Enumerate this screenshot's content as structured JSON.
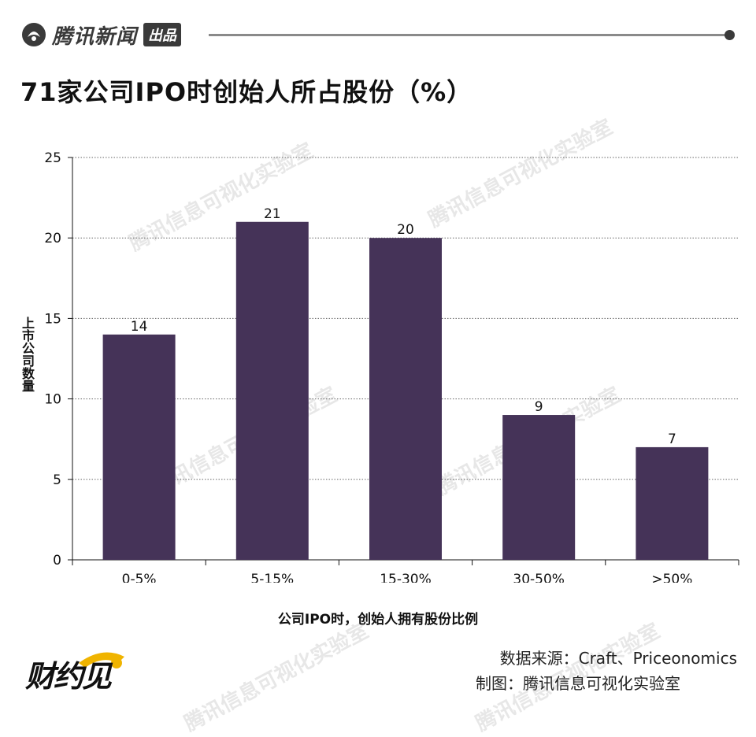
{
  "header": {
    "brand_name": "腾讯新闻",
    "brand_tag": "出品"
  },
  "title": "71家公司IPO时创始人所占股份（%）",
  "watermark": "腾讯信息可视化实验室",
  "footer": {
    "logo_text": "财约见",
    "source": "数据来源：Craft、Priceonomics",
    "maker": "制图：腾讯信息可视化实验室"
  },
  "colors": {
    "bar": "#453358",
    "grid": "#666666",
    "brand_dark": "#3a3a3a",
    "logo_accent": "#f0b400"
  },
  "chart_data": {
    "type": "bar",
    "title": "71家公司IPO时创始人所占股份（%）",
    "xlabel": "公司IPO时，创始人拥有股份比例",
    "ylabel": "上市公司数量",
    "categories": [
      "0-5%",
      "5-15%",
      "15-30%",
      "30-50%",
      ">50%"
    ],
    "values": [
      14,
      21,
      20,
      9,
      7
    ],
    "value_labels": [
      "14",
      "21",
      "20",
      "9",
      "7"
    ],
    "ylim": [
      0,
      25
    ],
    "yticks": [
      0,
      5,
      10,
      15,
      20,
      25
    ],
    "grid": "horizontal dotted",
    "legend": "none"
  }
}
